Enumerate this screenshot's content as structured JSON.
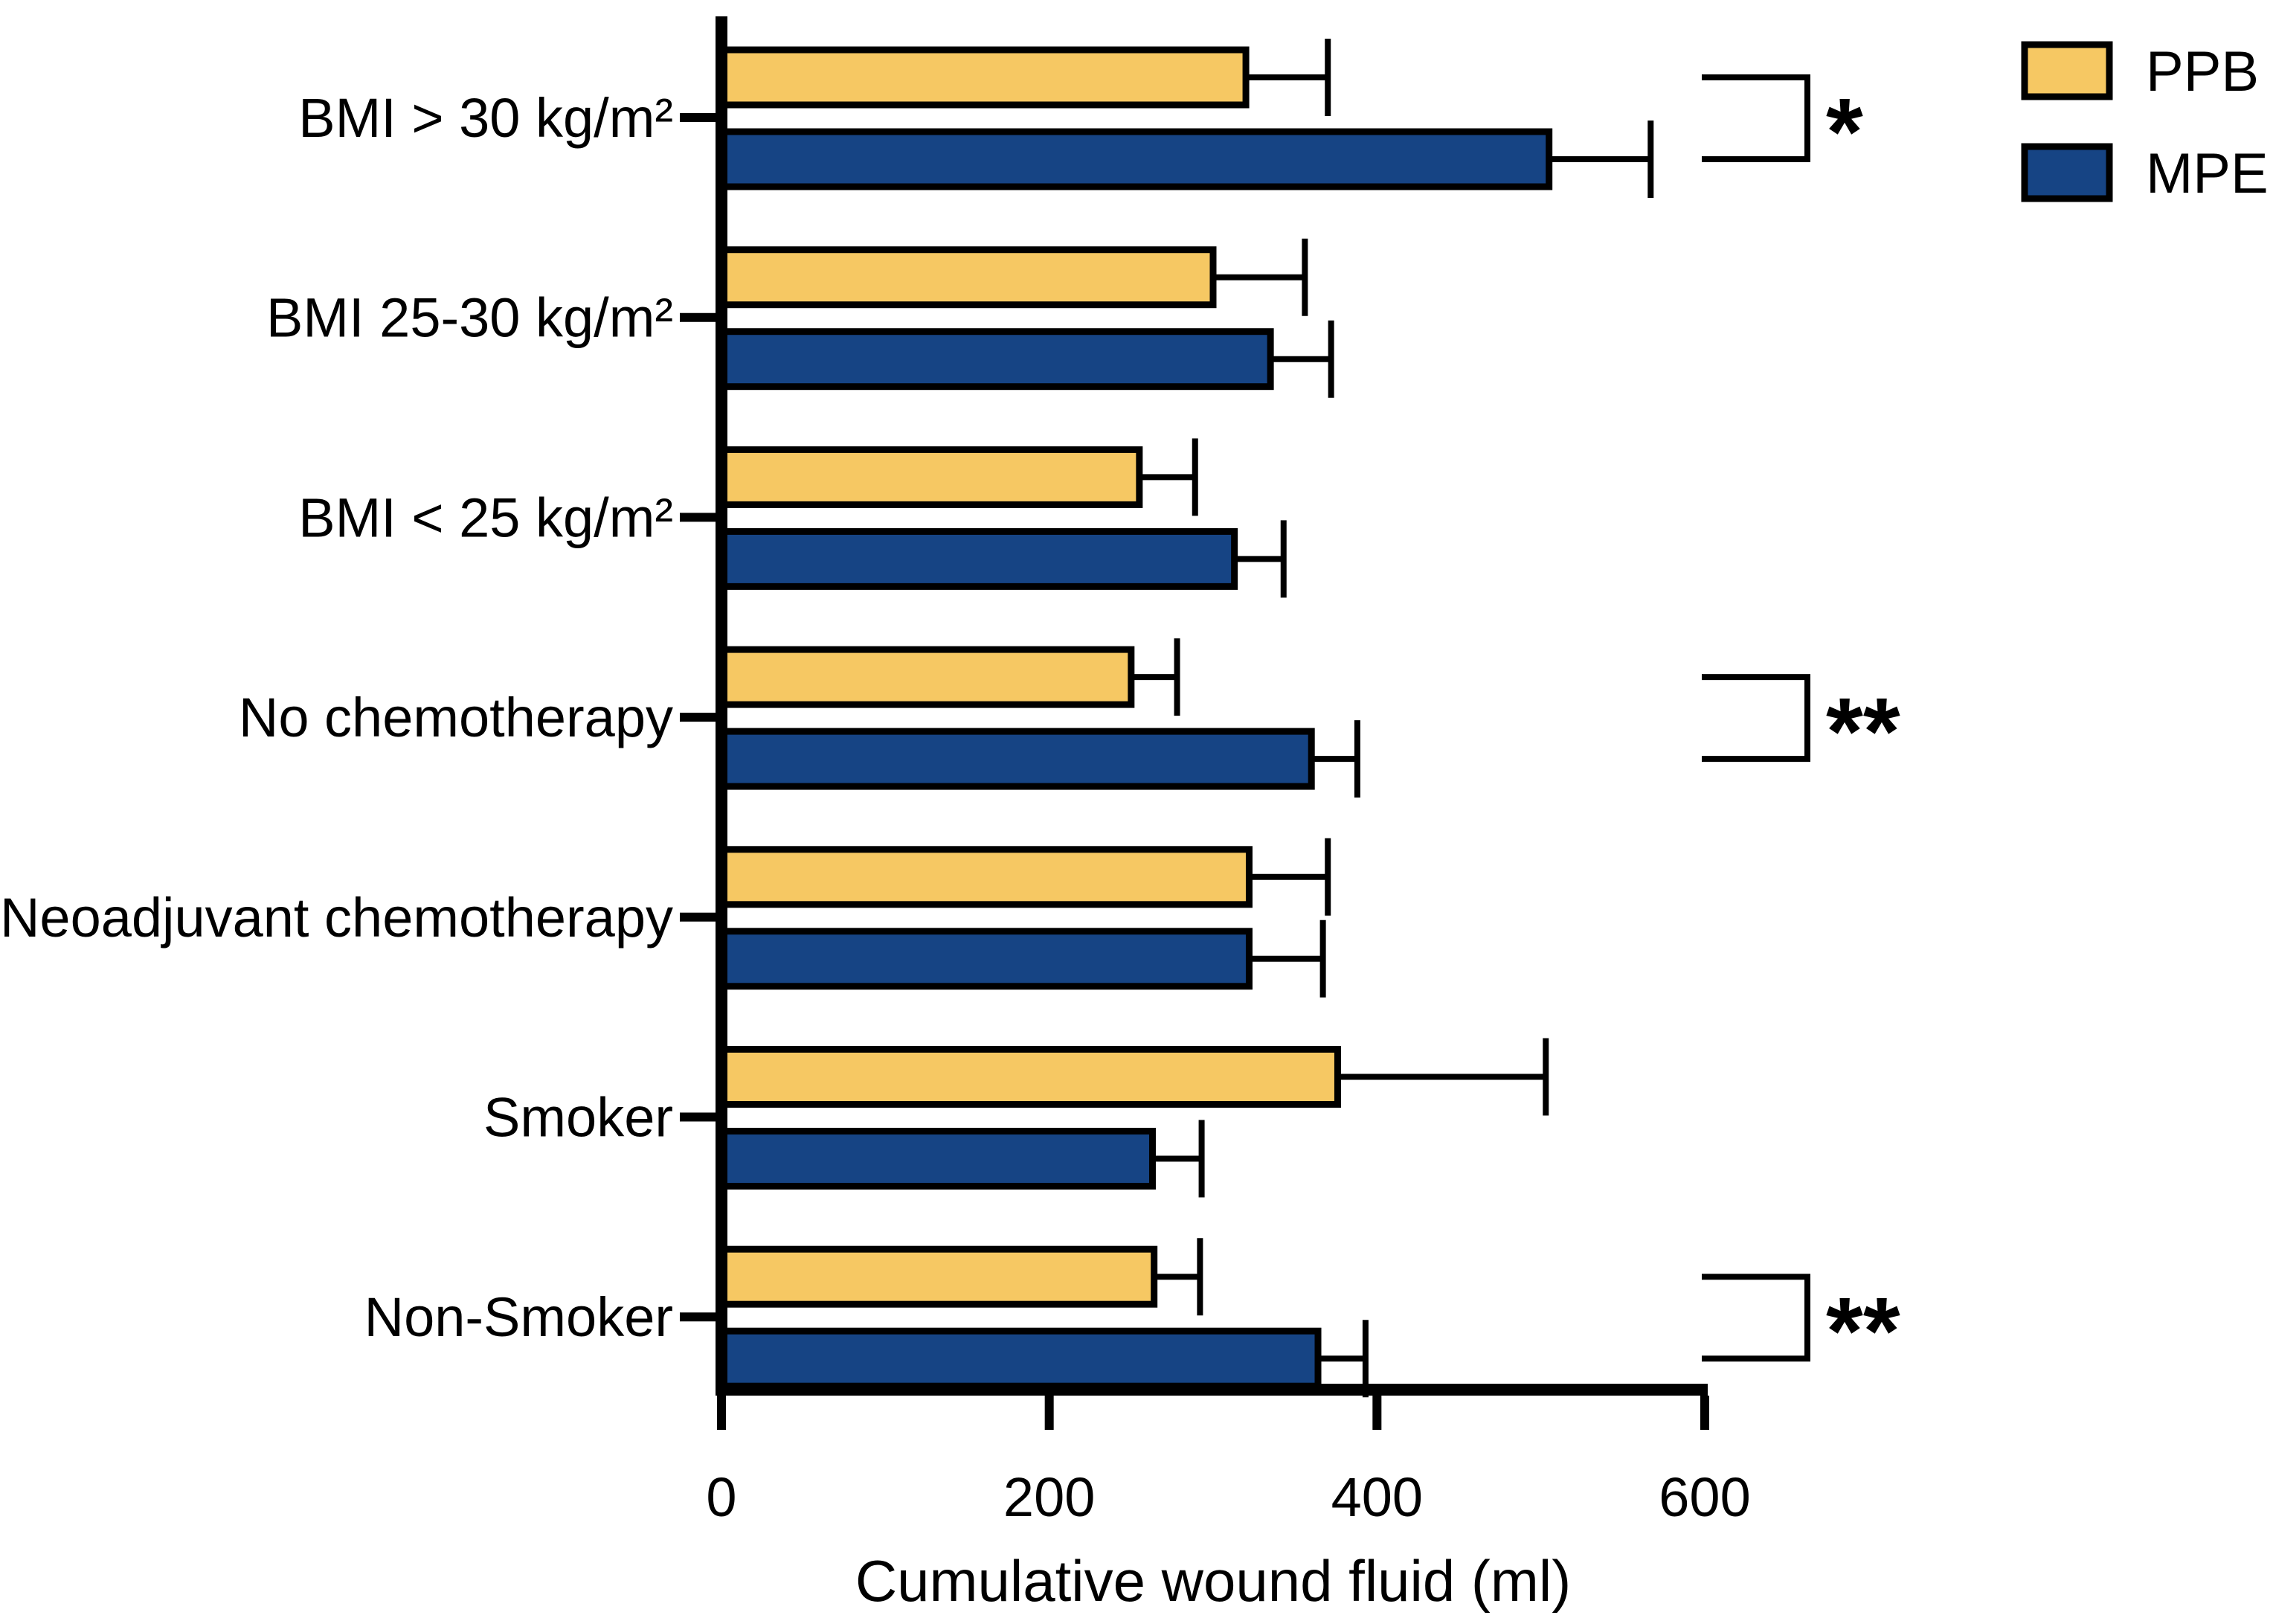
{
  "chart_data": {
    "type": "bar",
    "orientation": "horizontal",
    "title": "",
    "xlabel": "Cumulative wound fluid (ml)",
    "ylabel": "",
    "xlim": [
      0,
      600
    ],
    "x_ticks": [
      0,
      200,
      400,
      600
    ],
    "x_tick_labels": [
      "0",
      "200",
      "400",
      "600"
    ],
    "grid": false,
    "bar_outline_color": "#000000",
    "categories": [
      "BMI > 30 kg/m²",
      "BMI 25-30 kg/m²",
      "BMI < 25 kg/m²",
      "No chemotherapy",
      "Neoadjuvant chemotherapy",
      "Smoker",
      "Non-Smoker"
    ],
    "series": [
      {
        "name": "PPB",
        "color": "#F6C863",
        "values": [
          320,
          300,
          255,
          250,
          322,
          376,
          264
        ],
        "errors_plus": [
          50,
          56,
          34,
          28,
          48,
          127,
          28
        ]
      },
      {
        "name": "MPE",
        "color": "#164484",
        "values": [
          505,
          335,
          313,
          360,
          322,
          263,
          364
        ],
        "errors_plus": [
          62,
          37,
          30,
          28,
          45,
          30,
          29
        ]
      }
    ],
    "significance": [
      {
        "category": "BMI > 30 kg/m²",
        "category_index": 0,
        "label": "*"
      },
      {
        "category": "No chemotherapy",
        "category_index": 3,
        "label": "**"
      },
      {
        "category": "Non-Smoker",
        "category_index": 6,
        "label": "**"
      }
    ],
    "legend": {
      "position": "top-right",
      "entries": [
        "PPB",
        "MPE"
      ]
    }
  }
}
